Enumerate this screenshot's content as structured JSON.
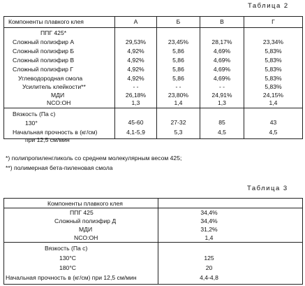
{
  "table2": {
    "title": "Таблица 2",
    "header": {
      "components": "Компоненты плавкого клея",
      "cols": [
        "А",
        "Б",
        "В",
        "Г"
      ]
    },
    "rows": [
      {
        "label": "ППГ 425*",
        "values": [
          "",
          "",
          "",
          ""
        ]
      },
      {
        "label": "Сложный полиэфир А",
        "values": [
          "29,53%",
          "23,45%",
          "28,17%",
          "23,34%"
        ]
      },
      {
        "label": "Сложный полиэфир Б",
        "values": [
          "4,92%",
          "5,86",
          "4,69%",
          "5,83%"
        ]
      },
      {
        "label": "Сложный полиэфир В",
        "values": [
          "4,92%",
          "5,86",
          "4,69%",
          "5,83%"
        ]
      },
      {
        "label": "Сложный полиэфир Г",
        "values": [
          "4,92%",
          "5,86",
          "4,69%",
          "5,83%"
        ]
      },
      {
        "label": "Углеводородная смола",
        "values": [
          "4,92%",
          "5,86",
          "4,69%",
          "5,83%"
        ]
      },
      {
        "label": "Усилитель клейкости**",
        "values": [
          "- -",
          "- -",
          "- -",
          "5,83%"
        ]
      },
      {
        "label": "МДИ",
        "values": [
          "26,18%",
          "23,80%",
          "24,91%",
          "24,15%"
        ]
      },
      {
        "label": "NCO:OH",
        "values": [
          "1,3",
          "1,4",
          "1,3",
          "1,4"
        ]
      }
    ],
    "viscosity": {
      "label": "Вязкость (Па с)",
      "temp": "130°",
      "values": [
        "45-60",
        "27-32",
        "85",
        "43"
      ]
    },
    "strength": {
      "label_line1": "Начальная прочность в (кг/см)",
      "label_line2": "при 12,5 см/мин",
      "values": [
        "4,1-5,9",
        "5,3",
        "4,5",
        "4,5"
      ]
    },
    "footnotes": [
      "*) полипропиленгликоль со среднем молекулярным весом 425;",
      "**) полимерная бета-пиленовая смола"
    ]
  },
  "table3": {
    "title": "Таблица 3",
    "header": "Компоненты плавкого клея",
    "rows": [
      {
        "label": "ППГ 425",
        "value": "34,4%"
      },
      {
        "label": "Сложный полиэфир Д",
        "value": "34,4%"
      },
      {
        "label": "МДИ",
        "value": "31,2%"
      },
      {
        "label": "NCO:OH",
        "value": "1,4"
      }
    ],
    "viscosity": {
      "label": "Вязкость (Па с)",
      "rows": [
        {
          "label": "130°С",
          "value": "125"
        },
        {
          "label": "180°С",
          "value": "20"
        }
      ]
    },
    "strength": {
      "label": "Начальная прочность в (кг/см) при 12,5 см/мин",
      "value": "4,4-4,8"
    }
  }
}
